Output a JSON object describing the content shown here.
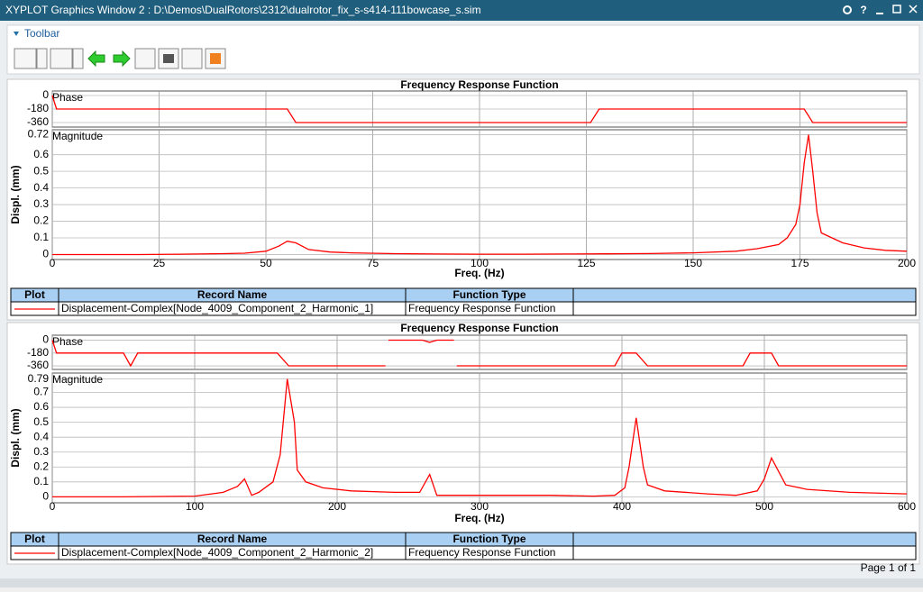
{
  "window": {
    "title": "XYPLOT Graphics Window 2 : D:\\Demos\\DualRotors\\2312\\dualrotor_fix_s-s414-111bowcase_s.sim",
    "help": "?"
  },
  "toolbar": {
    "label": "Toolbar"
  },
  "plots": [
    {
      "title": "Frequency Response Function",
      "y_label": "Displ. (mm)",
      "x_label": "Freq. (Hz)",
      "color": "#ff0000",
      "xlim": [
        0,
        200
      ],
      "xticks": [
        0,
        25,
        50,
        75,
        100,
        125,
        150,
        175,
        200
      ],
      "phase": {
        "label": "Phase",
        "ylim": [
          -420,
          60
        ],
        "yticks": [
          0,
          -180,
          -360
        ],
        "x": [
          0,
          1,
          55,
          57,
          126,
          128,
          176,
          178,
          200
        ],
        "values": [
          0,
          -180,
          -180,
          -360,
          -360,
          -180,
          -180,
          -360,
          -360
        ]
      },
      "magnitude": {
        "label": "Magnitude",
        "ylim": [
          -0.03,
          0.75
        ],
        "yticks": [
          0,
          0.1,
          0.2,
          0.3,
          0.4,
          0.5,
          0.6,
          0.72
        ],
        "x": [
          0,
          10,
          20,
          30,
          40,
          45,
          50,
          53,
          55,
          57,
          60,
          65,
          70,
          80,
          90,
          100,
          110,
          120,
          130,
          140,
          150,
          160,
          165,
          170,
          172,
          174,
          175,
          176,
          177,
          178,
          179,
          180,
          185,
          190,
          195,
          200
        ],
        "values": [
          0,
          0,
          0,
          0.002,
          0.005,
          0.008,
          0.02,
          0.05,
          0.08,
          0.07,
          0.03,
          0.015,
          0.01,
          0.005,
          0.003,
          0.002,
          0.002,
          0.003,
          0.004,
          0.006,
          0.01,
          0.02,
          0.035,
          0.06,
          0.1,
          0.18,
          0.3,
          0.55,
          0.72,
          0.5,
          0.25,
          0.13,
          0.07,
          0.04,
          0.025,
          0.02
        ]
      },
      "table": {
        "headers": [
          "Plot",
          "Record Name",
          "Function Type"
        ],
        "rows": [
          [
            "Displacement-Complex[Node_4009_Component_2_Harmonic_1]",
            "Frequency Response Function"
          ]
        ]
      }
    },
    {
      "title": "Frequency Response Function",
      "y_label": "Displ. (mm)",
      "x_label": "Freq. (Hz)",
      "color": "#ff0000",
      "xlim": [
        0,
        600
      ],
      "xticks": [
        0,
        100,
        200,
        300,
        400,
        500,
        600
      ],
      "phase": {
        "label": "Phase",
        "ylim": [
          -410,
          70
        ],
        "yticks": [
          0,
          -180,
          -360
        ],
        "x": [
          0,
          3,
          50,
          55,
          60,
          158,
          166,
          234,
          235,
          236,
          260,
          265,
          270,
          282,
          283,
          284,
          395,
          400,
          410,
          418,
          485,
          490,
          505,
          510,
          600
        ],
        "values": [
          0,
          -180,
          -180,
          -360,
          -180,
          -180,
          -360,
          -360,
          null,
          0,
          0,
          -30,
          0,
          0,
          null,
          -360,
          -360,
          -180,
          -180,
          -360,
          -360,
          -180,
          -180,
          -360,
          -360
        ]
      },
      "magnitude": {
        "label": "Magnitude",
        "ylim": [
          -0.04,
          0.83
        ],
        "yticks": [
          0,
          0.1,
          0.2,
          0.3,
          0.4,
          0.5,
          0.6,
          0.7,
          0.79
        ],
        "x": [
          0,
          50,
          100,
          120,
          130,
          135,
          140,
          145,
          155,
          160,
          165,
          170,
          172,
          178,
          190,
          210,
          240,
          258,
          265,
          270,
          300,
          350,
          380,
          395,
          402,
          405,
          410,
          415,
          418,
          430,
          460,
          480,
          495,
          500,
          505,
          510,
          515,
          530,
          560,
          600
        ],
        "values": [
          0,
          0,
          0.005,
          0.03,
          0.07,
          0.12,
          0.01,
          0.03,
          0.1,
          0.28,
          0.79,
          0.5,
          0.18,
          0.1,
          0.06,
          0.04,
          0.03,
          0.03,
          0.15,
          0.01,
          0.01,
          0.01,
          0.005,
          0.01,
          0.06,
          0.2,
          0.53,
          0.2,
          0.08,
          0.04,
          0.02,
          0.01,
          0.04,
          0.12,
          0.26,
          0.17,
          0.08,
          0.05,
          0.03,
          0.02
        ]
      },
      "table": {
        "headers": [
          "Plot",
          "Record Name",
          "Function Type"
        ],
        "rows": [
          [
            "Displacement-Complex[Node_4009_Component_2_Harmonic_2]",
            "Frequency Response Function"
          ]
        ]
      }
    }
  ],
  "footer": {
    "page": "Page 1 of 1"
  }
}
